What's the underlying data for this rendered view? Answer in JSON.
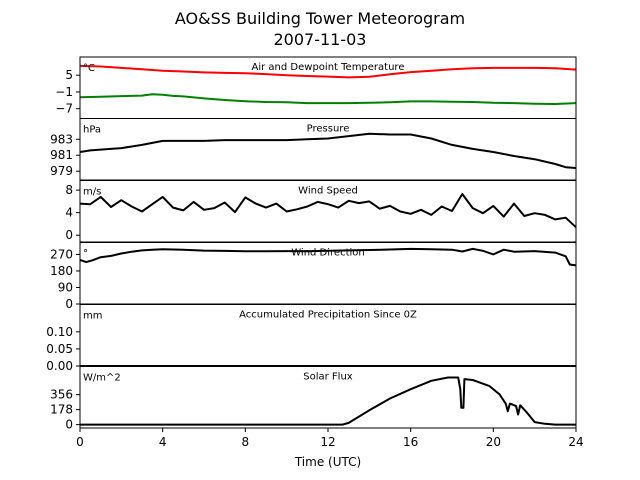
{
  "title_line1": "AO&SS Building Tower Meteorogram",
  "title_line2": "2007-11-03",
  "xlabel": "Time (UTC)",
  "chart_data": [
    {
      "type": "line",
      "title": "Air and Dewpoint Temperature",
      "unit": "°C",
      "xlim": [
        0,
        24
      ],
      "ylim": [
        -10.5,
        11.5
      ],
      "yticks": [
        5,
        -1,
        -7
      ],
      "ytick_labels": [
        "5",
        "−1",
        "−7"
      ],
      "series": [
        {
          "color": "#ff0000",
          "x": [
            0,
            1,
            2,
            3,
            4,
            5,
            6,
            7,
            8,
            9,
            10,
            11,
            12,
            13,
            14,
            15,
            16,
            17,
            18,
            19,
            20,
            21,
            22,
            23,
            24
          ],
          "y": [
            8.3,
            8.1,
            7.6,
            7.1,
            6.6,
            6.3,
            6.0,
            5.8,
            5.7,
            5.4,
            5.0,
            4.7,
            4.5,
            4.2,
            4.4,
            5.3,
            6.1,
            6.6,
            7.1,
            7.5,
            7.6,
            7.6,
            7.6,
            7.5,
            7.0
          ]
        },
        {
          "color": "#008000",
          "x": [
            0,
            1,
            2,
            3,
            3.5,
            4,
            4.5,
            5,
            6,
            7,
            8,
            9,
            10,
            11,
            12,
            13,
            14,
            15,
            16,
            17,
            18,
            19,
            20,
            21,
            22,
            23,
            24
          ],
          "y": [
            -2.9,
            -2.7,
            -2.5,
            -2.3,
            -1.8,
            -2.0,
            -2.4,
            -2.6,
            -3.3,
            -3.9,
            -4.3,
            -4.6,
            -4.7,
            -5.0,
            -5.0,
            -5.0,
            -4.9,
            -4.7,
            -4.4,
            -4.4,
            -4.5,
            -4.6,
            -4.9,
            -5.0,
            -5.2,
            -5.3,
            -5.0
          ]
        }
      ]
    },
    {
      "type": "line",
      "title": "Pressure",
      "unit": "hPa",
      "xlim": [
        0,
        24
      ],
      "ylim": [
        977.9,
        985.6
      ],
      "yticks": [
        983,
        981,
        979
      ],
      "ytick_labels": [
        "983",
        "981",
        "979"
      ],
      "series": [
        {
          "color": "#000000",
          "x": [
            0,
            0.5,
            1,
            2,
            3,
            4,
            5,
            6,
            7,
            8,
            9,
            10,
            11,
            12,
            13,
            14,
            15,
            16,
            17,
            18,
            19,
            20,
            21,
            22,
            23,
            23.5,
            24
          ],
          "y": [
            981.4,
            981.6,
            981.7,
            981.9,
            982.3,
            982.8,
            982.8,
            982.8,
            982.9,
            982.9,
            982.9,
            982.9,
            983.0,
            983.1,
            983.4,
            983.7,
            983.6,
            983.6,
            983.1,
            982.3,
            981.8,
            981.4,
            980.9,
            980.5,
            979.9,
            979.5,
            979.4
          ]
        }
      ]
    },
    {
      "type": "line",
      "title": "Wind Speed",
      "unit": "m/s",
      "xlim": [
        0,
        24
      ],
      "ylim": [
        -1.2,
        9.7
      ],
      "yticks": [
        8,
        4,
        0
      ],
      "ytick_labels": [
        "8",
        "4",
        "0"
      ],
      "series": [
        {
          "color": "#000000",
          "x": [
            0,
            0.5,
            1,
            1.5,
            2,
            2.5,
            3,
            3.5,
            4,
            4.5,
            5,
            5.5,
            6,
            6.5,
            7,
            7.5,
            8,
            8.5,
            9,
            9.5,
            10,
            10.5,
            11,
            11.5,
            12,
            12.5,
            13,
            13.5,
            14,
            14.5,
            15,
            15.5,
            16,
            16.5,
            17,
            17.5,
            18,
            18.5,
            19,
            19.5,
            20,
            20.5,
            21,
            21.5,
            22,
            22.5,
            23,
            23.5,
            24
          ],
          "y": [
            5.6,
            5.5,
            6.8,
            5.0,
            6.2,
            5.1,
            4.2,
            5.5,
            6.8,
            4.9,
            4.4,
            5.9,
            4.5,
            4.8,
            5.8,
            4.1,
            6.7,
            5.6,
            4.9,
            5.6,
            4.2,
            4.6,
            5.1,
            5.9,
            5.5,
            4.9,
            6.1,
            5.7,
            6.0,
            4.7,
            5.2,
            4.2,
            3.8,
            4.5,
            3.6,
            5.1,
            4.3,
            7.3,
            4.8,
            3.9,
            5.2,
            3.3,
            5.6,
            3.4,
            3.9,
            3.6,
            2.8,
            3.1,
            1.4
          ]
        }
      ]
    },
    {
      "type": "line",
      "title": "Wind Direction",
      "unit": "°",
      "xlim": [
        0,
        24
      ],
      "ylim": [
        0,
        335
      ],
      "yticks": [
        270,
        180,
        90,
        0
      ],
      "ytick_labels": [
        "270",
        "180",
        "90",
        "0"
      ],
      "series": [
        {
          "color": "#000000",
          "x": [
            0,
            0.3,
            0.6,
            1,
            1.5,
            2,
            2.5,
            3,
            3.5,
            4,
            5,
            6,
            7,
            8,
            9,
            10,
            11,
            12,
            13,
            14,
            15,
            16,
            17,
            18,
            18.5,
            19,
            19.5,
            20,
            20.5,
            21,
            22,
            23,
            23.5,
            23.7,
            24
          ],
          "y": [
            240,
            228,
            238,
            255,
            262,
            275,
            285,
            292,
            296,
            298,
            296,
            291,
            289,
            287,
            287,
            288,
            287,
            290,
            292,
            294,
            297,
            300,
            298,
            296,
            286,
            300,
            290,
            270,
            296,
            285,
            288,
            280,
            260,
            215,
            210
          ]
        }
      ]
    },
    {
      "type": "line",
      "title": "Accumulated Precipitation Since 0Z",
      "unit": "mm",
      "xlim": [
        0,
        24
      ],
      "ylim": [
        0,
        0.18
      ],
      "yticks": [
        0.1,
        0.05,
        0.0
      ],
      "ytick_labels": [
        "0.10",
        "0.05",
        "0.00"
      ],
      "series": [
        {
          "color": "#000000",
          "x": [
            0,
            24
          ],
          "y": [
            0,
            0
          ]
        }
      ]
    },
    {
      "type": "line",
      "title": "Solar Flux",
      "unit": "W/m^2",
      "xlim": [
        0,
        24
      ],
      "ylim": [
        -40,
        690
      ],
      "yticks": [
        356,
        178,
        0
      ],
      "ytick_labels": [
        "356",
        "178",
        "0"
      ],
      "series": [
        {
          "color": "#000000",
          "x": [
            0,
            12,
            12.7,
            13,
            14,
            15,
            16,
            17,
            17.8,
            18.3,
            18.4,
            18.45,
            18.55,
            18.6,
            19,
            19.8,
            20.3,
            20.6,
            20.7,
            20.8,
            21.1,
            21.2,
            21.3,
            21.6,
            22,
            22.5,
            23,
            24
          ],
          "y": [
            0,
            0,
            0,
            20,
            170,
            310,
            420,
            520,
            560,
            560,
            420,
            200,
            200,
            540,
            530,
            460,
            360,
            250,
            160,
            250,
            220,
            120,
            230,
            150,
            30,
            10,
            0,
            0
          ]
        }
      ]
    }
  ],
  "xticks": [
    0,
    4,
    8,
    12,
    16,
    20,
    24
  ],
  "xtick_labels": [
    "0",
    "4",
    "8",
    "12",
    "16",
    "20",
    "24"
  ]
}
